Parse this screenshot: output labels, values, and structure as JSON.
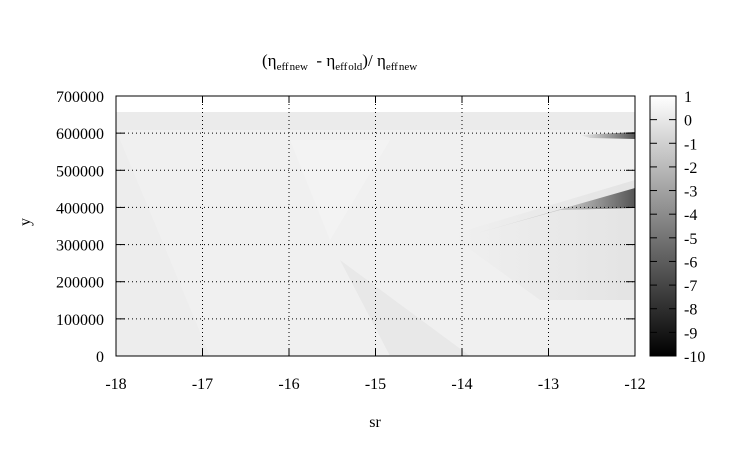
{
  "chart_data": {
    "type": "heatmap",
    "title_parts": {
      "open": "(",
      "eta1": "η",
      "eff1": "eff",
      "new1": "new",
      "minus": "  - ",
      "eta2": "η",
      "eff2": "eff",
      "old": "old",
      "divide": ")/ ",
      "eta3": "η",
      "eff3": "eff",
      "new2": "new"
    },
    "xlabel": "sr",
    "ylabel": "y",
    "xlim": [
      -18,
      -12
    ],
    "ylim": [
      0,
      700000
    ],
    "x_ticks": [
      -18,
      -17,
      -16,
      -15,
      -14,
      -13,
      -12
    ],
    "x_tick_labels": [
      "-18",
      "-17",
      "-16",
      "-15",
      "-14",
      "-13",
      "-12"
    ],
    "y_ticks": [
      0,
      100000,
      200000,
      300000,
      400000,
      500000,
      600000,
      700000
    ],
    "y_tick_labels": [
      "0",
      "100000",
      "200000",
      "300000",
      "400000",
      "500000",
      "600000",
      "700000"
    ],
    "grid": true,
    "colorbar": {
      "range": [
        -10,
        1
      ],
      "ticks": [
        1,
        0,
        -1,
        -2,
        -3,
        -4,
        -5,
        -6,
        -7,
        -8,
        -9,
        -10
      ],
      "tick_labels": [
        "1",
        "0",
        "-1",
        "-2",
        "-3",
        "-4",
        "-5",
        "-6",
        "-7",
        "-8",
        "-9",
        "-10"
      ],
      "colormap": "grayscale",
      "low_color": "#000000",
      "high_color": "#ffffff"
    },
    "z_description_values": {
      "background": 0,
      "upper_band": -0.3,
      "dark_wedge_min": -5,
      "small_feature_min": -3
    }
  }
}
